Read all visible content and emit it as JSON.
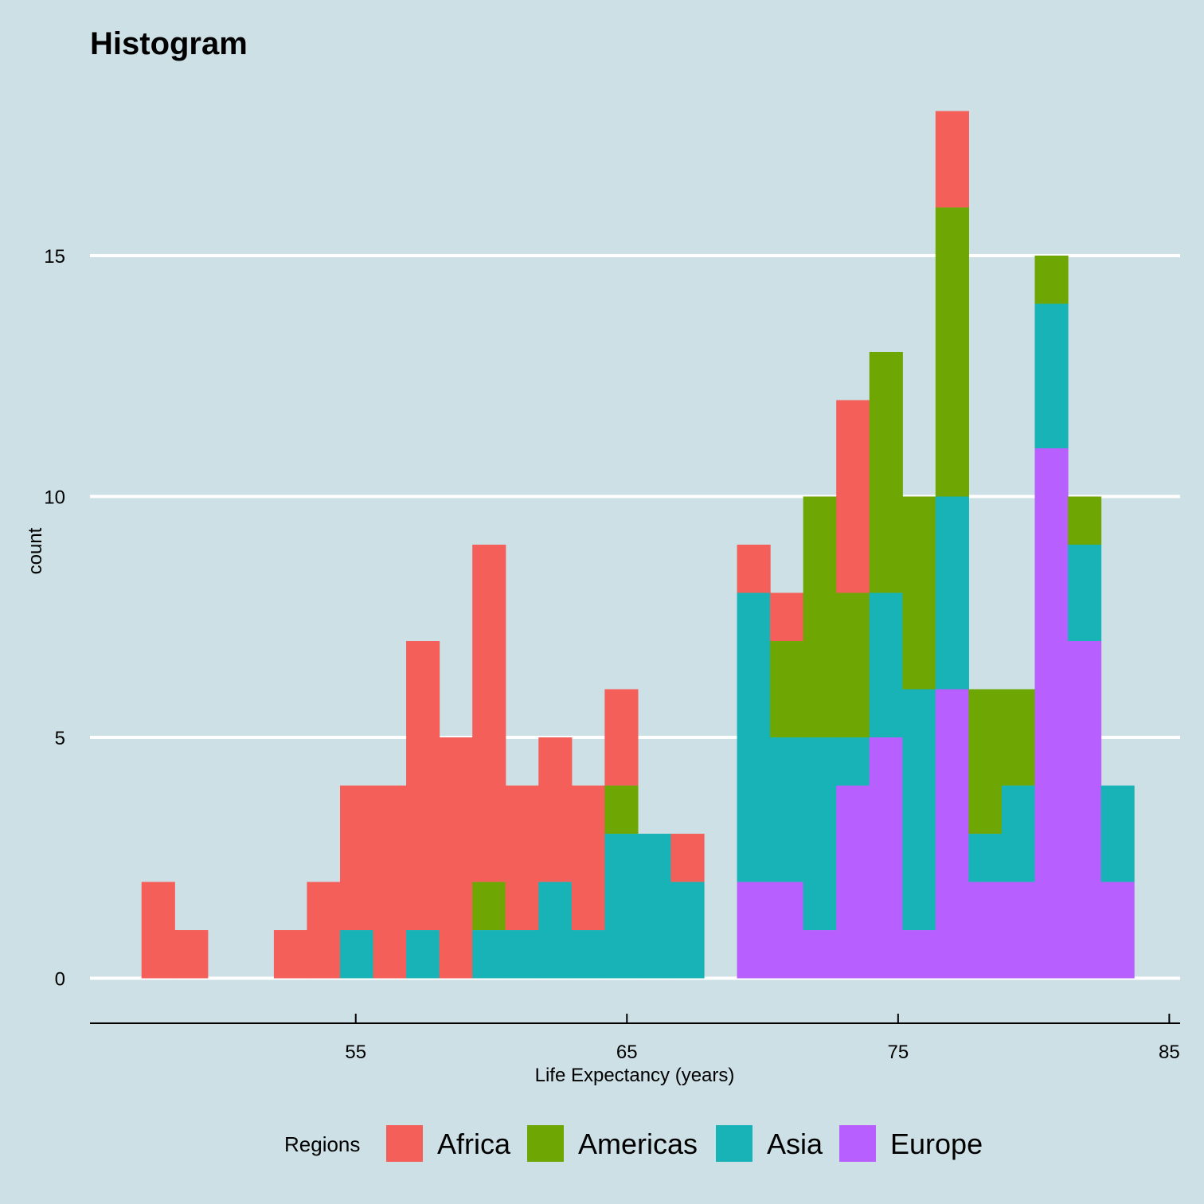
{
  "chart_data": {
    "type": "bar",
    "subtype": "stacked-histogram",
    "title": "Histogram",
    "xlabel": "Life Expectancy (years)",
    "ylabel": "count",
    "xlim": [
      45.2,
      85.4
    ],
    "ylim": [
      -0.9,
      18.9
    ],
    "x_ticks": [
      55,
      65,
      75,
      85
    ],
    "x_tick_labels": [
      "55",
      "65",
      "75",
      "85"
    ],
    "y_ticks": [
      0,
      5,
      10,
      15
    ],
    "y_tick_labels": [
      "0",
      "5",
      "10",
      "15"
    ],
    "grid": "horizontal major",
    "legend_title": "Regions",
    "legend_position": "bottom",
    "bin_width": 1.22,
    "bin_starts": [
      47.1,
      48.32,
      49.54,
      50.76,
      51.98,
      53.2,
      54.42,
      55.64,
      56.86,
      58.08,
      59.3,
      60.52,
      61.74,
      62.96,
      64.18,
      65.4,
      66.62,
      67.84,
      69.06,
      70.28,
      71.5,
      72.72,
      73.94,
      75.16,
      76.38,
      77.6,
      78.82,
      80.04,
      81.26,
      82.48
    ],
    "series": [
      {
        "name": "Europe",
        "color": "#b760ff",
        "values": [
          0,
          0,
          0,
          0,
          0,
          0,
          0,
          0,
          0,
          0,
          0,
          0,
          0,
          0,
          0,
          0,
          0,
          0,
          2,
          2,
          1,
          4,
          5,
          1,
          6,
          2,
          2,
          11,
          7,
          2
        ]
      },
      {
        "name": "Asia",
        "color": "#18b3b7",
        "values": [
          0,
          0,
          0,
          0,
          0,
          0,
          1,
          0,
          1,
          0,
          1,
          1,
          2,
          1,
          3,
          3,
          2,
          0,
          6,
          3,
          4,
          1,
          3,
          5,
          4,
          1,
          2,
          3,
          2,
          2
        ]
      },
      {
        "name": "Americas",
        "color": "#6ea603",
        "values": [
          0,
          0,
          0,
          0,
          0,
          0,
          0,
          0,
          0,
          0,
          1,
          0,
          0,
          0,
          1,
          0,
          0,
          0,
          0,
          2,
          5,
          3,
          5,
          4,
          6,
          3,
          2,
          1,
          1,
          0
        ]
      },
      {
        "name": "Africa",
        "color": "#f45f5a",
        "values": [
          2,
          1,
          0,
          0,
          1,
          2,
          3,
          4,
          6,
          5,
          7,
          3,
          3,
          3,
          2,
          0,
          1,
          0,
          1,
          1,
          0,
          4,
          0,
          0,
          2,
          0,
          0,
          0,
          0,
          0
        ]
      }
    ]
  }
}
